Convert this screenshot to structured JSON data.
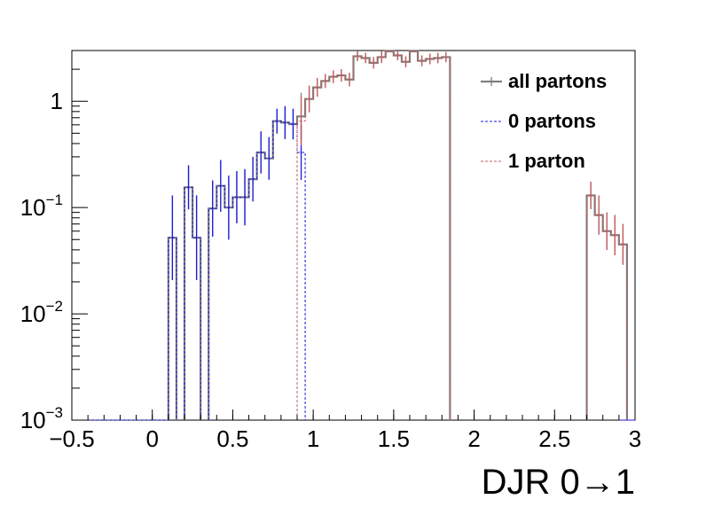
{
  "chart_data": {
    "type": "line",
    "xlabel": "DJR 0→1",
    "ylabel": "",
    "xlim": [
      -0.5,
      3
    ],
    "ylim": [
      0.001,
      3
    ],
    "yscale": "log",
    "x_ticks": [
      "−0.5",
      "0",
      "0.5",
      "1",
      "1.5",
      "2",
      "2.5",
      "3"
    ],
    "x_tick_values": [
      -0.5,
      0,
      0.5,
      1,
      1.5,
      2,
      2.5,
      3
    ],
    "y_ticks": [
      {
        "value": 1,
        "base": "1",
        "exp": ""
      },
      {
        "value": 0.1,
        "base": "10",
        "exp": "−1"
      },
      {
        "value": 0.01,
        "base": "10",
        "exp": "−2"
      },
      {
        "value": 0.001,
        "base": "10",
        "exp": "−3"
      }
    ],
    "legend_position": "top-right",
    "legend": [
      "all partons",
      "0 partons",
      "1 parton"
    ],
    "bin_width": 0.05,
    "series": [
      {
        "name": "all partons",
        "color": "#7f7f7f",
        "style": "solid",
        "bins": [
          [
            0.1,
            0.052,
            0.13
          ],
          [
            0.2,
            0.155,
            0.25
          ],
          [
            0.25,
            0.052,
            0.13
          ],
          [
            0.35,
            0.098,
            0.18
          ],
          [
            0.4,
            0.16,
            0.28
          ],
          [
            0.45,
            0.1,
            0.2
          ],
          [
            0.5,
            0.125,
            0.22
          ],
          [
            0.55,
            0.125,
            0.23
          ],
          [
            0.6,
            0.185,
            0.3
          ],
          [
            0.65,
            0.33,
            0.52
          ],
          [
            0.7,
            0.29,
            0.46
          ],
          [
            0.75,
            0.65,
            0.85
          ],
          [
            0.8,
            0.63,
            0.9
          ],
          [
            0.85,
            0.61,
            0.85
          ],
          [
            0.9,
            0.72,
            1.2
          ],
          [
            0.95,
            1.05,
            1.4
          ],
          [
            1.0,
            1.35,
            1.65
          ],
          [
            1.05,
            1.55,
            1.8
          ],
          [
            1.1,
            1.7,
            1.95
          ],
          [
            1.15,
            1.75,
            2.0
          ],
          [
            1.2,
            1.6,
            1.85
          ],
          [
            1.25,
            2.65,
            2.95
          ],
          [
            1.3,
            2.55,
            2.85
          ],
          [
            1.35,
            2.3,
            2.6
          ],
          [
            1.4,
            2.6,
            2.95
          ],
          [
            1.45,
            2.95,
            3.0
          ],
          [
            1.5,
            2.7,
            3.0
          ],
          [
            1.55,
            2.35,
            2.65
          ],
          [
            1.6,
            2.95,
            3.0
          ],
          [
            1.65,
            2.4,
            2.7
          ],
          [
            1.7,
            2.5,
            2.8
          ],
          [
            1.75,
            2.55,
            2.85
          ],
          [
            1.8,
            2.6,
            2.9
          ],
          [
            2.7,
            0.13,
            0.175
          ],
          [
            2.75,
            0.085,
            0.13
          ],
          [
            2.8,
            0.06,
            0.09
          ],
          [
            2.85,
            0.055,
            0.085
          ],
          [
            2.9,
            0.045,
            0.07
          ]
        ]
      },
      {
        "name": "0 partons",
        "color": "#1a1ae0",
        "style": "dashed",
        "bins": [
          [
            0.1,
            0.052,
            0.13
          ],
          [
            0.2,
            0.155,
            0.25
          ],
          [
            0.25,
            0.052,
            0.13
          ],
          [
            0.35,
            0.098,
            0.18
          ],
          [
            0.4,
            0.16,
            0.28
          ],
          [
            0.45,
            0.1,
            0.2
          ],
          [
            0.5,
            0.125,
            0.22
          ],
          [
            0.55,
            0.125,
            0.23
          ],
          [
            0.6,
            0.185,
            0.3
          ],
          [
            0.65,
            0.33,
            0.52
          ],
          [
            0.7,
            0.29,
            0.46
          ],
          [
            0.75,
            0.65,
            0.85
          ],
          [
            0.8,
            0.63,
            0.9
          ],
          [
            0.85,
            0.61,
            0.85
          ],
          [
            0.9,
            0.33,
            0.6
          ]
        ]
      },
      {
        "name": "1 parton",
        "color": "#c85a5a",
        "style": "dashed",
        "bins": [
          [
            0.9,
            0.65,
            1.1
          ],
          [
            0.95,
            1.05,
            1.4
          ],
          [
            1.0,
            1.35,
            1.65
          ],
          [
            1.05,
            1.55,
            1.8
          ],
          [
            1.1,
            1.7,
            1.95
          ],
          [
            1.15,
            1.75,
            2.0
          ],
          [
            1.2,
            1.6,
            1.85
          ],
          [
            1.25,
            2.65,
            2.95
          ],
          [
            1.3,
            2.55,
            2.85
          ],
          [
            1.35,
            2.3,
            2.6
          ],
          [
            1.4,
            2.6,
            2.95
          ],
          [
            1.45,
            2.95,
            3.0
          ],
          [
            1.5,
            2.7,
            3.0
          ],
          [
            1.55,
            2.35,
            2.65
          ],
          [
            1.6,
            2.95,
            3.0
          ],
          [
            1.65,
            2.4,
            2.7
          ],
          [
            1.7,
            2.5,
            2.8
          ],
          [
            1.75,
            2.55,
            2.85
          ],
          [
            1.8,
            2.6,
            2.9
          ],
          [
            2.7,
            0.13,
            0.175
          ],
          [
            2.75,
            0.085,
            0.13
          ],
          [
            2.8,
            0.06,
            0.09
          ],
          [
            2.85,
            0.055,
            0.085
          ],
          [
            2.9,
            0.045,
            0.07
          ]
        ]
      }
    ]
  }
}
